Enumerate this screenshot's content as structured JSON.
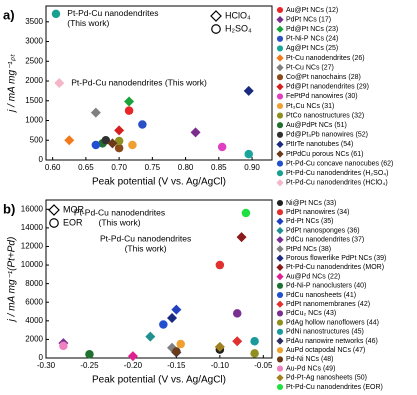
{
  "chart_data": [
    {
      "type": "scatter",
      "panel": "a)",
      "x_label": "Peak potential (V vs. Ag/AgCl)",
      "y_label": "j / mA mg⁻¹ₚₜ",
      "xlim": [
        0.59,
        0.93
      ],
      "ylim": [
        0,
        3900
      ],
      "xticks": [
        {
          "value": 0.6,
          "label": "0.60"
        },
        0.65,
        {
          "value": 0.7,
          "label": "0.70"
        },
        0.75,
        {
          "value": 0.8,
          "label": "0.80"
        },
        0.85,
        {
          "value": 0.9,
          "label": "0.90"
        }
      ],
      "yticks": [
        0,
        500,
        1000,
        1500,
        2000,
        2500,
        3000,
        3500
      ],
      "marker_key": [
        {
          "marker": "diamond",
          "label": "HClO₄"
        },
        {
          "marker": "circle",
          "label": "H₂SO₄"
        }
      ],
      "annotations": [
        {
          "lines": [
            "Pt-Pd-Cu nanodendrites",
            "(This work)"
          ],
          "color": "#e8262a"
        },
        {
          "lines": [
            "Pt-Pd-Cu nanodendrites (This work)"
          ],
          "color": "#e8262a"
        }
      ],
      "series": [
        {
          "name": "Au@Pt NCs (12)",
          "color": "#e8262a",
          "marker": "circle",
          "x": [
            0.715
          ],
          "values": [
            1250
          ]
        },
        {
          "name": "PdPt NCs (17)",
          "color": "#7b2d8e",
          "marker": "diamond",
          "x": [
            0.815
          ],
          "values": [
            700
          ]
        },
        {
          "name": "Pd@Pt NCs (23)",
          "color": "#1aa33b",
          "marker": "diamond",
          "x": [
            0.715
          ],
          "values": [
            1480
          ]
        },
        {
          "name": "Pt-Ni-P NCs (24)",
          "color": "#2b4fc4",
          "marker": "circle",
          "x": [
            0.735
          ],
          "values": [
            900
          ]
        },
        {
          "name": "Ag@Pt NCs (25)",
          "color": "#19a59a",
          "marker": "circle",
          "x": [
            0.895
          ],
          "values": [
            150
          ]
        },
        {
          "name": "Pt-Cu nanodendrites (26)",
          "color": "#f07a1c",
          "marker": "diamond",
          "x": [
            0.625
          ],
          "values": [
            500
          ]
        },
        {
          "name": "Pt-Cu NCs (27)",
          "color": "#808080",
          "marker": "diamond",
          "x": [
            0.665
          ],
          "values": [
            1200
          ]
        },
        {
          "name": "Co@Pt nanochains (28)",
          "color": "#8a4a1a",
          "marker": "circle",
          "x": [
            0.7
          ],
          "values": [
            300
          ]
        },
        {
          "name": "Pd@Pt nanodendrites (29)",
          "color": "#d62020",
          "marker": "diamond",
          "x": [
            0.7
          ],
          "values": [
            750
          ]
        },
        {
          "name": "FePtPd nanowires (30)",
          "color": "#e040c0",
          "marker": "circle",
          "x": [
            0.855
          ],
          "values": [
            330
          ]
        },
        {
          "name": "Pt₃Cu NCs (31)",
          "color": "#f0a030",
          "marker": "circle",
          "x": [
            0.72
          ],
          "values": [
            380
          ]
        },
        {
          "name": "PtCo nanostructures (32)",
          "color": "#8f8f20",
          "marker": "circle",
          "x": [
            0.7
          ],
          "values": [
            480
          ]
        },
        {
          "name": "Au@PdPt NCs (51)",
          "color": "#207030",
          "marker": "circle",
          "x": [
            0.675
          ],
          "values": [
            420
          ]
        },
        {
          "name": "Pd@Pt₃Pb nanowires (52)",
          "color": "#303030",
          "marker": "circle",
          "x": [
            0.68
          ],
          "values": [
            500
          ]
        },
        {
          "name": "PtIrTe nanotubes (54)",
          "color": "#1a2a80",
          "marker": "diamond",
          "x": [
            0.895
          ],
          "values": [
            1750
          ]
        },
        {
          "name": "PtPdCu porous NCs (61)",
          "color": "#6a3a1a",
          "marker": "diamond",
          "x": [
            0.69
          ],
          "values": [
            420
          ]
        },
        {
          "name": "Pt-Pd-Cu concave nanocubes (62)",
          "color": "#2050d0",
          "marker": "circle",
          "x": [
            0.665
          ],
          "values": [
            380
          ]
        },
        {
          "name": "Pt-Pd-Cu nanodendrites (H₂SO₄)",
          "color": "#1aa08f",
          "marker": "circle",
          "label_color": "#e8262a",
          "x": [
            0.605
          ],
          "values": [
            3700
          ]
        },
        {
          "name": "Pt-Pd-Cu nanodendrites (HClO₄)",
          "color": "#f4b6c8",
          "marker": "diamond",
          "label_color": "#f08090",
          "x": [
            0.61
          ],
          "values": [
            1950
          ]
        }
      ]
    },
    {
      "type": "scatter",
      "panel": "b)",
      "x_label": "Peak potential (V vs. Ag/AgCl)",
      "y_label": "j / mA mg⁻¹(Pt+Pd)",
      "xlim": [
        -0.3,
        -0.04
      ],
      "ylim": [
        0,
        17000
      ],
      "xticks": [
        {
          "value": -0.3,
          "label": "-0.30"
        },
        -0.25,
        {
          "value": -0.2,
          "label": "-0.20"
        },
        -0.15,
        {
          "value": -0.1,
          "label": "-0.10"
        },
        -0.05
      ],
      "yticks": [
        0,
        2000,
        4000,
        6000,
        8000,
        10000,
        12000,
        14000,
        16000
      ],
      "marker_key": [
        {
          "marker": "diamond",
          "label": "MOR"
        },
        {
          "marker": "circle",
          "label": "EOR"
        }
      ],
      "annotations": [
        {
          "lines": [
            "Pt-Pd-Cu nanodendrites",
            "(This work)"
          ],
          "color": "#e8262a"
        },
        {
          "lines": [
            "Pt-Pd-Cu nanodendrites",
            "(This work)"
          ],
          "color": "#e8262a"
        }
      ],
      "series": [
        {
          "name": "Ni@Pt NCs (33)",
          "color": "#202020",
          "marker": "circle",
          "x": [
            -0.1
          ],
          "values": [
            900
          ]
        },
        {
          "name": "PdPt nanowires (34)",
          "color": "#e03030",
          "marker": "circle",
          "x": [
            -0.1
          ],
          "values": [
            10000
          ]
        },
        {
          "name": "Pd-Pt NCs (35)",
          "color": "#2040c0",
          "marker": "diamond",
          "x": [
            -0.15
          ],
          "values": [
            5200
          ]
        },
        {
          "name": "PdPt nanosponges (36)",
          "color": "#209090",
          "marker": "diamond",
          "x": [
            -0.18
          ],
          "values": [
            2300
          ]
        },
        {
          "name": "PdCu nanodendrites (37)",
          "color": "#7a3090",
          "marker": "diamond",
          "x": [
            -0.28
          ],
          "values": [
            1600
          ]
        },
        {
          "name": "PtPd NCs (38)",
          "color": "#808080",
          "marker": "diamond",
          "x": [
            -0.155
          ],
          "values": [
            1100
          ]
        },
        {
          "name": "Porous flowerlike PdPt NCs (39)",
          "color": "#1a2a80",
          "marker": "diamond",
          "x": [
            -0.155
          ],
          "values": [
            4300
          ]
        },
        {
          "name": "Pt-Pd-Cu nanodendrites (MOR)",
          "color": "#8b1a1a",
          "marker": "diamond",
          "label_color": "#e8262a",
          "x": [
            -0.075
          ],
          "values": [
            13000
          ]
        },
        {
          "name": "Au@Pd NCs (22)",
          "color": "#e02090",
          "marker": "diamond",
          "x": [
            -0.2
          ],
          "values": [
            200
          ]
        },
        {
          "name": "Pd-Ni-P nanoclusters (40)",
          "color": "#207030",
          "marker": "circle",
          "x": [
            -0.25
          ],
          "values": [
            400
          ]
        },
        {
          "name": "PdCu nanosheets (41)",
          "color": "#2050d0",
          "marker": "circle",
          "x": [
            -0.165
          ],
          "values": [
            3600
          ]
        },
        {
          "name": "PdPt nanomembranes (42)",
          "color": "#e03030",
          "marker": "diamond",
          "x": [
            -0.08
          ],
          "values": [
            1800
          ]
        },
        {
          "name": "PdCu₂ NCs (43)",
          "color": "#7a3090",
          "marker": "circle",
          "x": [
            -0.08
          ],
          "values": [
            4800
          ]
        },
        {
          "name": "PdAg hollow nanoflowers (44)",
          "color": "#909020",
          "marker": "circle",
          "x": [
            -0.06
          ],
          "values": [
            500
          ]
        },
        {
          "name": "PdNi nanostructures (45)",
          "color": "#1a9a9a",
          "marker": "circle",
          "x": [
            -0.06
          ],
          "values": [
            1800
          ]
        },
        {
          "name": "PdAu nanowire networks (46)",
          "color": "#303060",
          "marker": "diamond",
          "x": [
            -0.15
          ],
          "values": [
            600
          ]
        },
        {
          "name": "AuPd octapodal NCs (47)",
          "color": "#f0a030",
          "marker": "circle",
          "x": [
            -0.145
          ],
          "values": [
            1500
          ]
        },
        {
          "name": "Pd-Ni NCs (48)",
          "color": "#6a3a1a",
          "marker": "circle",
          "x": [
            -0.15
          ],
          "values": [
            700
          ]
        },
        {
          "name": "Au-Pd NCs (49)",
          "color": "#f080c0",
          "marker": "circle",
          "x": [
            -0.28
          ],
          "values": [
            1300
          ]
        },
        {
          "name": "Pd-Pt-Ag nanosheets (50)",
          "color": "#a08020",
          "marker": "diamond",
          "x": [
            -0.1
          ],
          "values": [
            1200
          ]
        },
        {
          "name": "Pt-Pd-Cu nanodendrites (EOR)",
          "color": "#20e040",
          "marker": "circle",
          "label_color": "#20c040",
          "x": [
            -0.07
          ],
          "values": [
            15600
          ]
        }
      ]
    }
  ]
}
